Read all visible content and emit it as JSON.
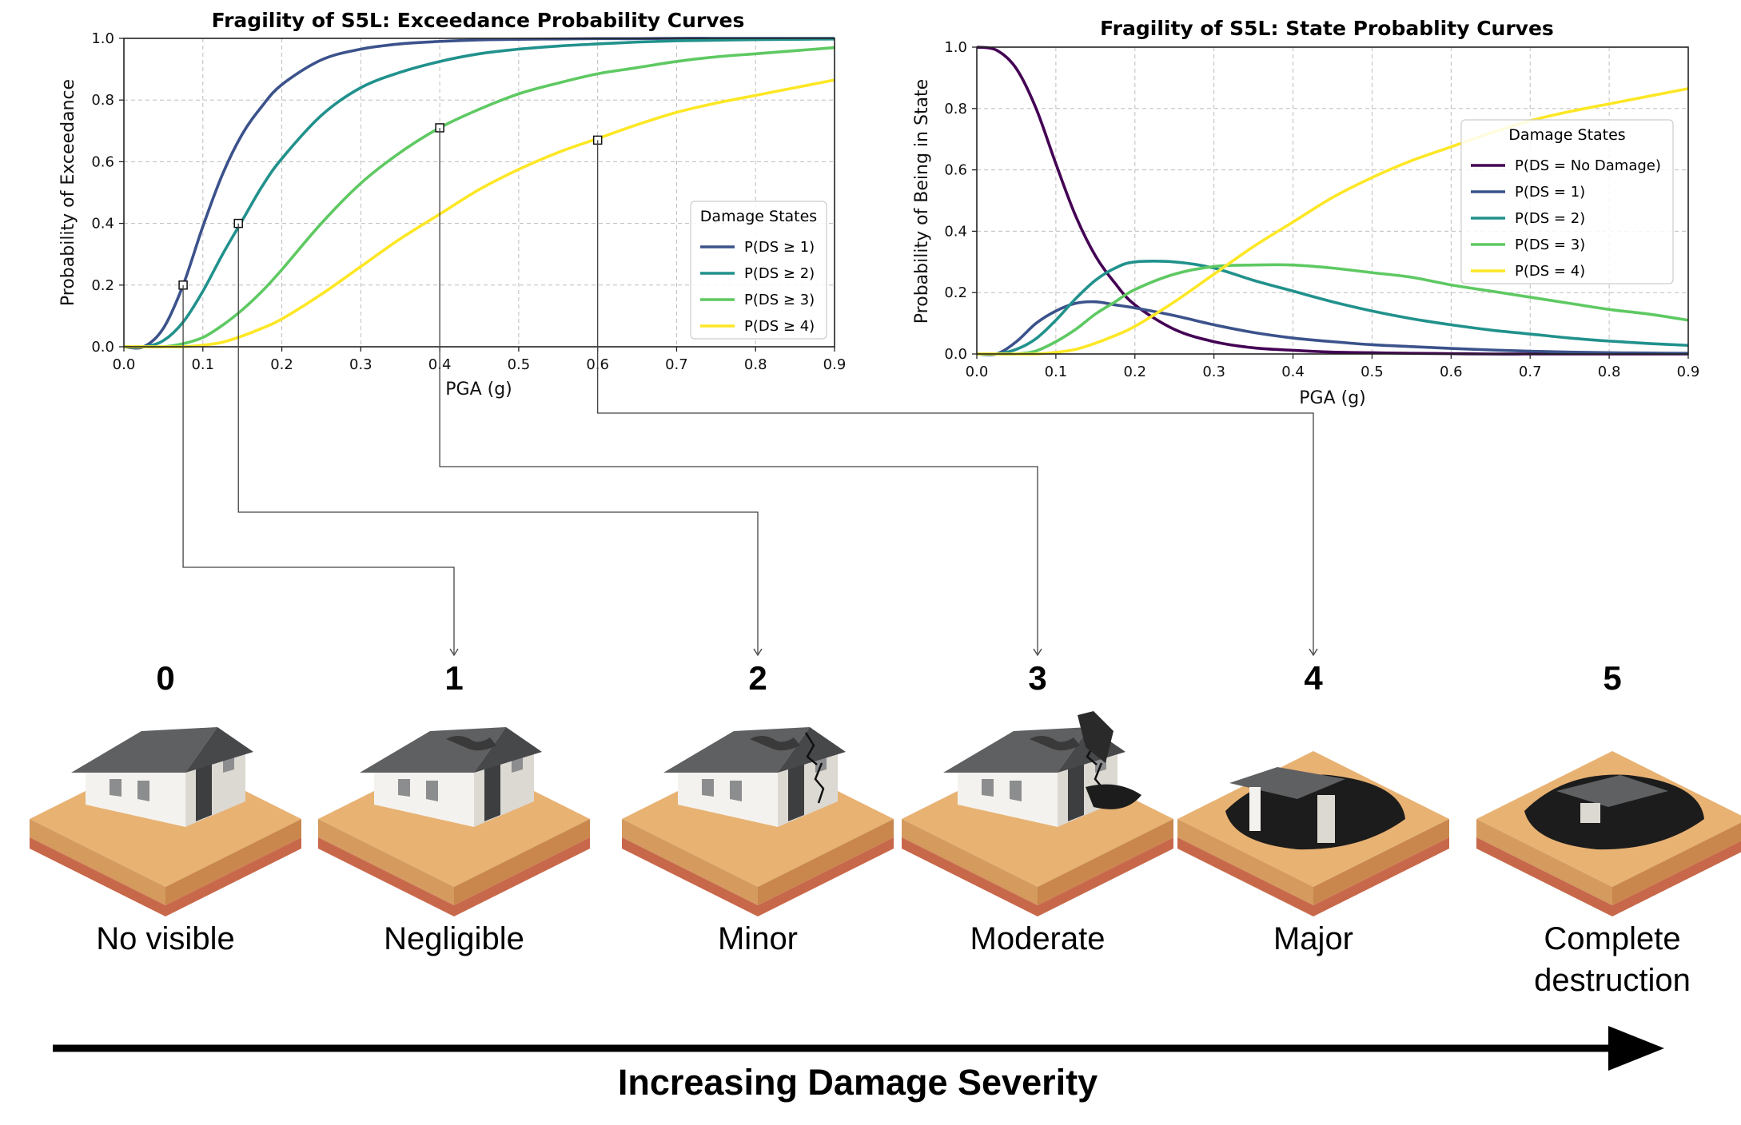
{
  "chart_data": [
    {
      "type": "line",
      "title": "Fragility of S5L: Exceedance Probability Curves",
      "xlabel": "PGA (g)",
      "ylabel": "Probability of Exceedance",
      "xlim": [
        0.0,
        0.9
      ],
      "ylim": [
        0.0,
        1.0
      ],
      "xticks": [
        "0.0",
        "0.1",
        "0.2",
        "0.3",
        "0.4",
        "0.5",
        "0.6",
        "0.7",
        "0.8",
        "0.9"
      ],
      "yticks": [
        "0.0",
        "0.2",
        "0.4",
        "0.6",
        "0.8",
        "1.0"
      ],
      "grid": true,
      "legend": {
        "title": "Damage States",
        "placement": "center-right"
      },
      "x": [
        0.0,
        0.025,
        0.05,
        0.075,
        0.1,
        0.125,
        0.15,
        0.175,
        0.2,
        0.25,
        0.3,
        0.35,
        0.4,
        0.45,
        0.5,
        0.55,
        0.6,
        0.65,
        0.7,
        0.75,
        0.8,
        0.85,
        0.9
      ],
      "series": [
        {
          "name": "P(DS ≥ 1)",
          "color": "#3b528b",
          "values": [
            0.0,
            0.0,
            0.06,
            0.2,
            0.39,
            0.56,
            0.69,
            0.78,
            0.85,
            0.93,
            0.965,
            0.982,
            0.99,
            0.995,
            0.997,
            0.998,
            0.999,
            0.999,
            1.0,
            1.0,
            1.0,
            1.0,
            1.0
          ]
        },
        {
          "name": "P(DS ≥ 2)",
          "color": "#21918c",
          "values": [
            0.0,
            0.0,
            0.02,
            0.08,
            0.18,
            0.3,
            0.41,
            0.52,
            0.61,
            0.75,
            0.84,
            0.89,
            0.925,
            0.95,
            0.965,
            0.975,
            0.982,
            0.988,
            0.992,
            0.994,
            0.996,
            0.997,
            0.998
          ]
        },
        {
          "name": "P(DS ≥ 3)",
          "color": "#5ec962",
          "values": [
            0.0,
            0.0,
            0.0,
            0.01,
            0.03,
            0.07,
            0.12,
            0.18,
            0.25,
            0.4,
            0.53,
            0.63,
            0.71,
            0.77,
            0.82,
            0.855,
            0.885,
            0.905,
            0.925,
            0.94,
            0.95,
            0.96,
            0.97
          ]
        },
        {
          "name": "P(DS ≥ 4)",
          "color": "#fde725",
          "values": [
            0.0,
            0.0,
            0.0,
            0.0,
            0.005,
            0.015,
            0.035,
            0.06,
            0.09,
            0.17,
            0.26,
            0.35,
            0.43,
            0.51,
            0.575,
            0.63,
            0.675,
            0.72,
            0.76,
            0.79,
            0.815,
            0.84,
            0.865
          ]
        }
      ],
      "markers": [
        {
          "x": 0.075,
          "y": 0.2,
          "level": "1"
        },
        {
          "x": 0.145,
          "y": 0.4,
          "level": "2"
        },
        {
          "x": 0.4,
          "y": 0.71,
          "level": "3"
        },
        {
          "x": 0.6,
          "y": 0.67,
          "level": "4"
        }
      ]
    },
    {
      "type": "line",
      "title": "Fragility of S5L: State Probablity Curves",
      "xlabel": "PGA (g)",
      "ylabel": "Probability of Being in State",
      "xlim": [
        0.0,
        0.9
      ],
      "ylim": [
        0.0,
        1.0
      ],
      "xticks": [
        "0.0",
        "0.1",
        "0.2",
        "0.3",
        "0.4",
        "0.5",
        "0.6",
        "0.7",
        "0.8",
        "0.9"
      ],
      "yticks": [
        "0.0",
        "0.2",
        "0.4",
        "0.6",
        "0.8",
        "1.0"
      ],
      "grid": true,
      "legend": {
        "title": "Damage States",
        "placement": "upper-right"
      },
      "x": [
        0.0,
        0.025,
        0.05,
        0.075,
        0.1,
        0.125,
        0.15,
        0.175,
        0.2,
        0.25,
        0.3,
        0.35,
        0.4,
        0.45,
        0.5,
        0.55,
        0.6,
        0.65,
        0.7,
        0.75,
        0.8,
        0.85,
        0.9
      ],
      "series": [
        {
          "name": "P(DS = No Damage)",
          "color": "#440154",
          "values": [
            1.0,
            0.99,
            0.93,
            0.8,
            0.62,
            0.45,
            0.32,
            0.23,
            0.16,
            0.08,
            0.04,
            0.02,
            0.012,
            0.006,
            0.004,
            0.002,
            0.001,
            0.0,
            0.0,
            0.0,
            0.0,
            0.0,
            0.0
          ]
        },
        {
          "name": "P(DS = 1)",
          "color": "#3b528b",
          "values": [
            0.0,
            0.0,
            0.04,
            0.1,
            0.14,
            0.165,
            0.17,
            0.16,
            0.15,
            0.125,
            0.095,
            0.07,
            0.052,
            0.04,
            0.03,
            0.024,
            0.018,
            0.013,
            0.009,
            0.006,
            0.004,
            0.003,
            0.002
          ]
        },
        {
          "name": "P(DS = 2)",
          "color": "#21918c",
          "values": [
            0.0,
            0.0,
            0.015,
            0.05,
            0.11,
            0.18,
            0.24,
            0.28,
            0.3,
            0.3,
            0.28,
            0.24,
            0.205,
            0.17,
            0.14,
            0.115,
            0.095,
            0.078,
            0.065,
            0.052,
            0.042,
            0.034,
            0.028
          ]
        },
        {
          "name": "P(DS = 3)",
          "color": "#5ec962",
          "values": [
            0.0,
            0.0,
            0.0,
            0.01,
            0.04,
            0.08,
            0.13,
            0.17,
            0.21,
            0.26,
            0.285,
            0.29,
            0.29,
            0.28,
            0.265,
            0.25,
            0.225,
            0.205,
            0.185,
            0.165,
            0.145,
            0.13,
            0.11
          ]
        },
        {
          "name": "P(DS = 4)",
          "color": "#fde725",
          "values": [
            0.0,
            0.0,
            0.0,
            0.0,
            0.005,
            0.015,
            0.035,
            0.06,
            0.09,
            0.17,
            0.26,
            0.35,
            0.43,
            0.51,
            0.575,
            0.63,
            0.675,
            0.72,
            0.76,
            0.79,
            0.815,
            0.84,
            0.865
          ]
        }
      ]
    }
  ],
  "damage_levels": [
    {
      "number": "0",
      "label": "No visible"
    },
    {
      "number": "1",
      "label": "Negligible"
    },
    {
      "number": "2",
      "label": "Minor"
    },
    {
      "number": "3",
      "label": "Moderate"
    },
    {
      "number": "4",
      "label": "Major"
    },
    {
      "number": "5",
      "label": "Complete",
      "label2": "destruction"
    }
  ],
  "severity_label": "Increasing Damage Severity",
  "colors": {
    "ground_top": "#e8b273",
    "ground_side_left": "#d49a5e",
    "ground_side_right": "#c9874d",
    "ground_base": "#c8684a",
    "wall": "#f4f2ee",
    "wall_side": "#dcd9d2",
    "roof": "#5f6062",
    "roof_dark": "#47484a",
    "window": "#8c8d8f",
    "door": "#3d3e40",
    "rubble": "#1c1c1c"
  }
}
